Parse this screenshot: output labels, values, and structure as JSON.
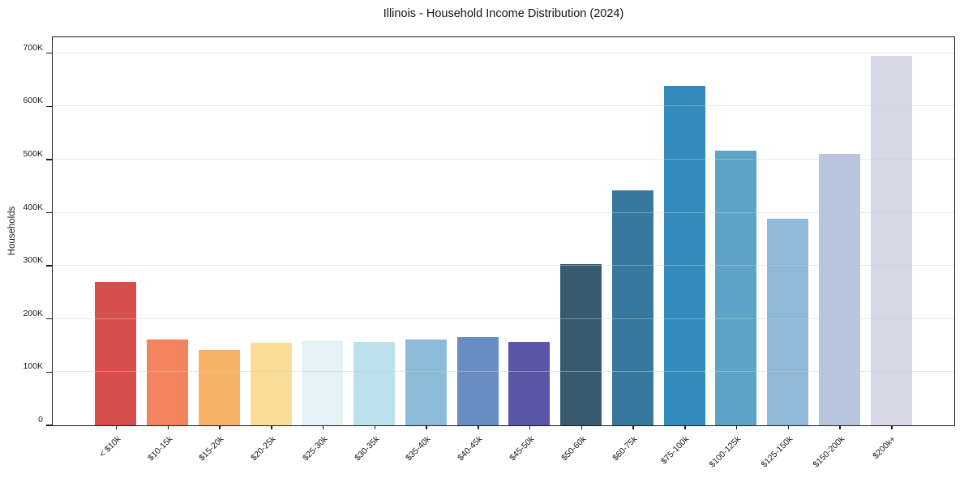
{
  "chart_data": {
    "type": "bar",
    "title": "Illinois - Household Income Distribution (2024)",
    "xlabel": "",
    "ylabel": "Households",
    "ylim": [
      0,
      730000
    ],
    "grid": "horizontal-light-gray-over-bars",
    "legend": "none",
    "categories": [
      "< $10k",
      "$10-15k",
      "$15-20k",
      "$20-25k",
      "$25-30k",
      "$30-35k",
      "$35-40k",
      "$40-45k",
      "$45-50k",
      "$50-60k",
      "$60-75k",
      "$75-100k",
      "$100-125k",
      "$125-150k",
      "$150-200k",
      "$200k+"
    ],
    "values": [
      270000,
      162000,
      141000,
      156000,
      158000,
      157000,
      161000,
      166000,
      157000,
      303000,
      442000,
      638000,
      517000,
      388000,
      510000,
      695000
    ],
    "bar_colors": [
      "#d6504b",
      "#f4845e",
      "#f8b267",
      "#fbdc95",
      "#e4f1f7",
      "#bce0ec",
      "#8cbbda",
      "#688dc5",
      "#5a57a8",
      "#365a6e",
      "#36789e",
      "#338abc",
      "#5ba4c8",
      "#90b8d9",
      "#b8c5dd",
      "#d7d8e6"
    ],
    "ytick_values": [
      0,
      100000,
      200000,
      300000,
      400000,
      500000,
      600000,
      700000
    ],
    "ytick_labels": [
      "0",
      "100K",
      "200K",
      "300K",
      "400K",
      "500K",
      "600K",
      "700K"
    ],
    "xtick_rotation_deg": 45,
    "spine_color": "#1a1a1a",
    "background_color": "#ffffff"
  }
}
